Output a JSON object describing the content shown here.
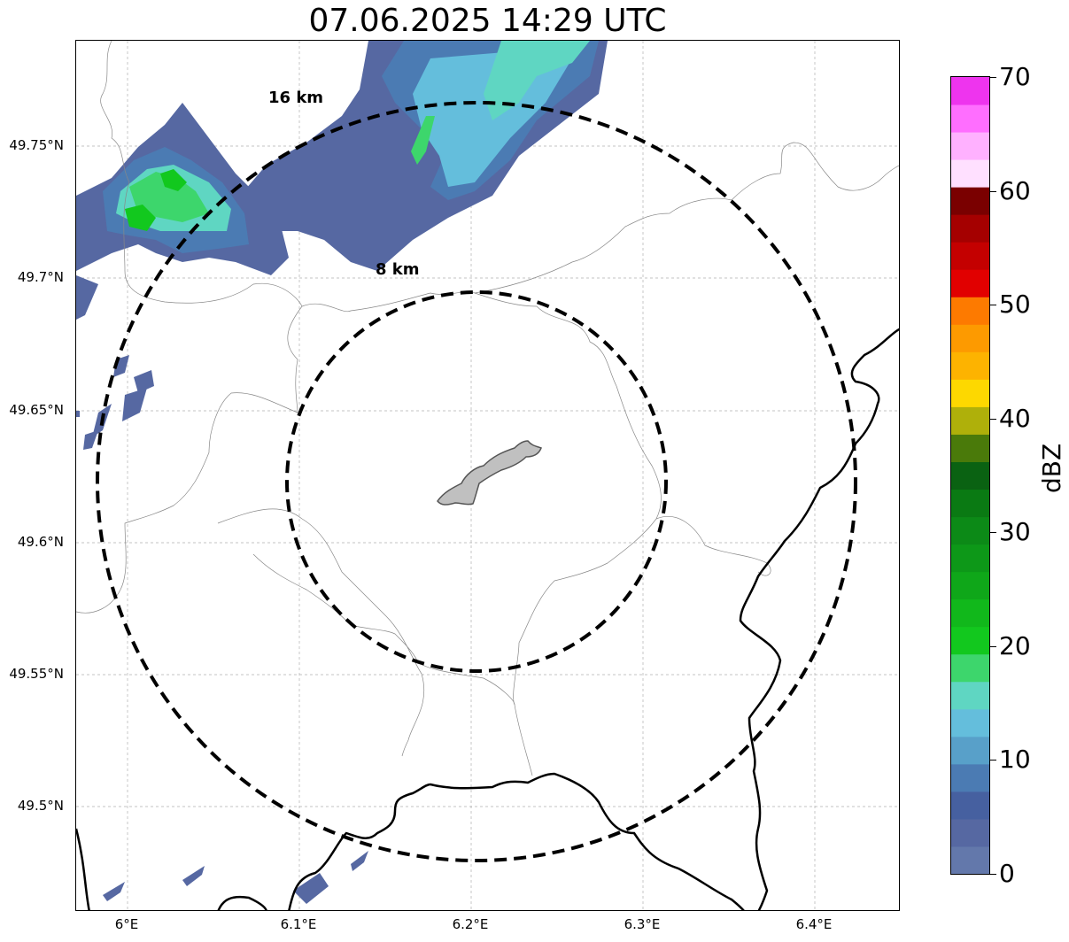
{
  "title": "07.06.2025 14:29 UTC",
  "map": {
    "lat_ticks": [
      "49.75°N",
      "49.7°N",
      "49.65°N",
      "49.6°N",
      "49.55°N",
      "49.5°N"
    ],
    "lon_ticks": [
      "6°E",
      "6.1°E",
      "6.2°E",
      "6.3°E",
      "6.4°E"
    ],
    "range_rings": [
      {
        "label": "8 km",
        "radius_km": 8
      },
      {
        "label": "16 km",
        "radius_km": 16
      }
    ],
    "center": {
      "lat": 49.623,
      "lon": 6.202
    },
    "gridlines": true
  },
  "colorbar": {
    "label": "dBZ",
    "tick_labels": [
      "0",
      "10",
      "20",
      "30",
      "40",
      "50",
      "60",
      "70"
    ],
    "colors": [
      "#6378ab",
      "#5668a2",
      "#4660a0",
      "#4b7bb3",
      "#58a0c9",
      "#64bedc",
      "#5fd6c2",
      "#3dd66c",
      "#12c81e",
      "#11b81b",
      "#0fa719",
      "#0d9818",
      "#0c8a17",
      "#0a7a13",
      "#0a6212",
      "#4a7a0a",
      "#afb00a",
      "#fdd800",
      "#fdb300",
      "#fd9a00",
      "#fd7a00",
      "#e10000",
      "#c40000",
      "#a50000",
      "#7a0000",
      "#ffe0ff",
      "#ffb1ff",
      "#ff6eff",
      "#ee34ee"
    ]
  }
}
